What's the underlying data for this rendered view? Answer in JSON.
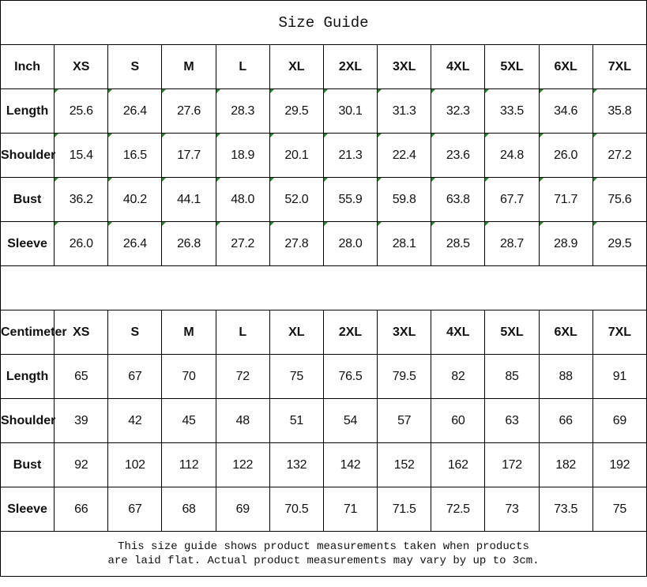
{
  "title": "Size Guide",
  "sizes": [
    "XS",
    "S",
    "M",
    "L",
    "XL",
    "2XL",
    "3XL",
    "4XL",
    "5XL",
    "6XL",
    "7XL"
  ],
  "inch": {
    "header": "Inch",
    "rows": [
      {
        "label": "Length",
        "values": [
          "25.6",
          "26.4",
          "27.6",
          "28.3",
          "29.5",
          "30.1",
          "31.3",
          "32.3",
          "33.5",
          "34.6",
          "35.8"
        ]
      },
      {
        "label": "Shoulder",
        "values": [
          "15.4",
          "16.5",
          "17.7",
          "18.9",
          "20.1",
          "21.3",
          "22.4",
          "23.6",
          "24.8",
          "26.0",
          "27.2"
        ]
      },
      {
        "label": "Bust",
        "values": [
          "36.2",
          "40.2",
          "44.1",
          "48.0",
          "52.0",
          "55.9",
          "59.8",
          "63.8",
          "67.7",
          "71.7",
          "75.6"
        ]
      },
      {
        "label": "Sleeve",
        "values": [
          "26.0",
          "26.4",
          "26.8",
          "27.2",
          "27.8",
          "28.0",
          "28.1",
          "28.5",
          "28.7",
          "28.9",
          "29.5"
        ]
      }
    ]
  },
  "centimeter": {
    "header": "Centimeter",
    "rows": [
      {
        "label": "Length",
        "values": [
          "65",
          "67",
          "70",
          "72",
          "75",
          "76.5",
          "79.5",
          "82",
          "85",
          "88",
          "91"
        ]
      },
      {
        "label": "Shoulder",
        "values": [
          "39",
          "42",
          "45",
          "48",
          "51",
          "54",
          "57",
          "60",
          "63",
          "66",
          "69"
        ]
      },
      {
        "label": "Bust",
        "values": [
          "92",
          "102",
          "112",
          "122",
          "132",
          "142",
          "152",
          "162",
          "172",
          "182",
          "192"
        ]
      },
      {
        "label": "Sleeve",
        "values": [
          "66",
          "67",
          "68",
          "69",
          "70.5",
          "71",
          "71.5",
          "72.5",
          "73",
          "73.5",
          "75"
        ]
      }
    ]
  },
  "footer": {
    "line1": "This size guide shows product measurements taken when products",
    "line2": "are laid flat. Actual product measurements may vary by up to 3cm."
  },
  "colors": {
    "text_number_marker": "#1a8a1a",
    "border": "#000000"
  }
}
